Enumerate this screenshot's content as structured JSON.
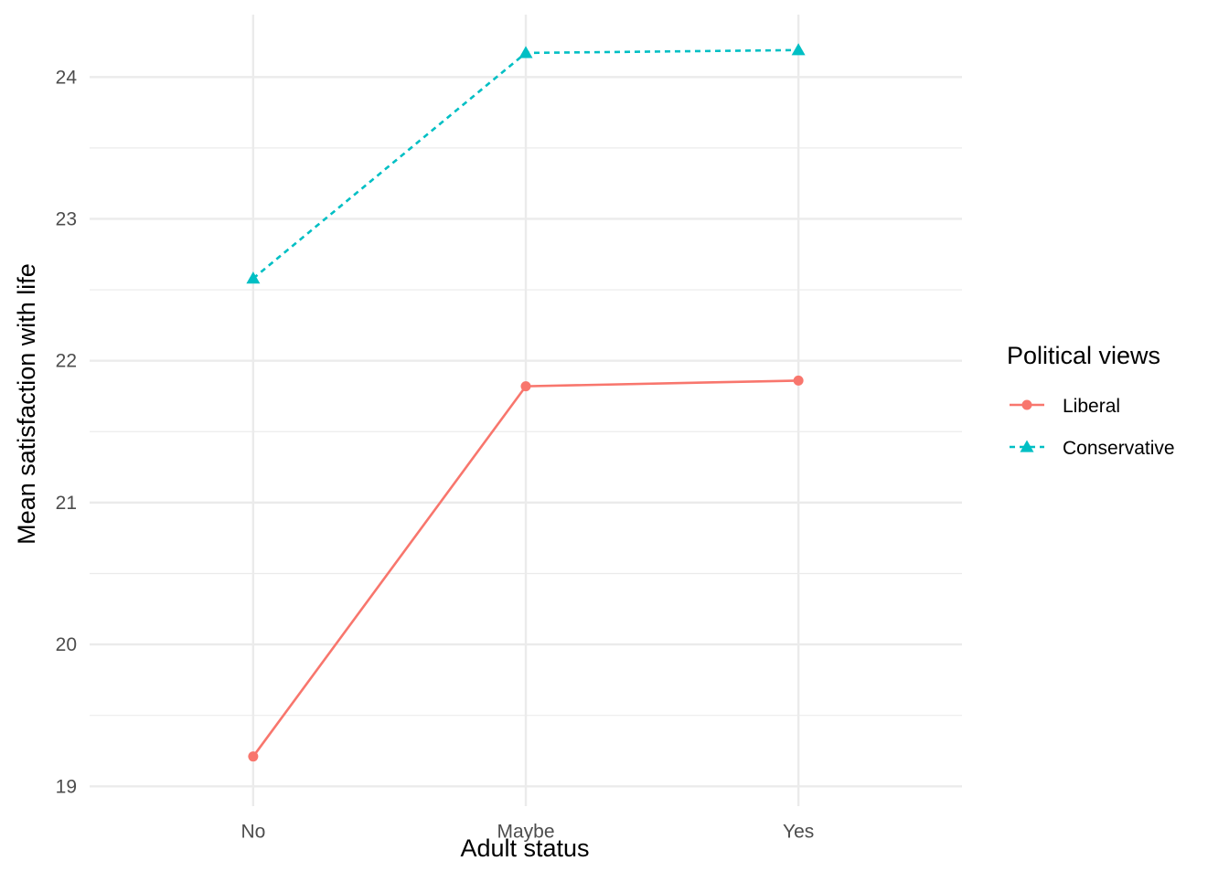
{
  "chart_data": {
    "type": "line",
    "title": "",
    "xlabel": "Adult status",
    "ylabel": "Mean satisfaction with life",
    "categories": [
      "No",
      "Maybe",
      "Yes"
    ],
    "ylim": [
      18.86,
      24.44
    ],
    "y_ticks": [
      19,
      20,
      21,
      22,
      23,
      24
    ],
    "grid": true,
    "legend": {
      "title": "Political views",
      "placement": "right"
    },
    "series": [
      {
        "name": "Liberal",
        "values": [
          19.21,
          21.82,
          21.86
        ],
        "color": "#F8766D",
        "line_style": "solid",
        "marker": "circle"
      },
      {
        "name": "Conservative",
        "values": [
          22.58,
          24.17,
          24.19
        ],
        "color": "#00BFC4",
        "line_style": "dashed",
        "marker": "triangle"
      }
    ]
  }
}
